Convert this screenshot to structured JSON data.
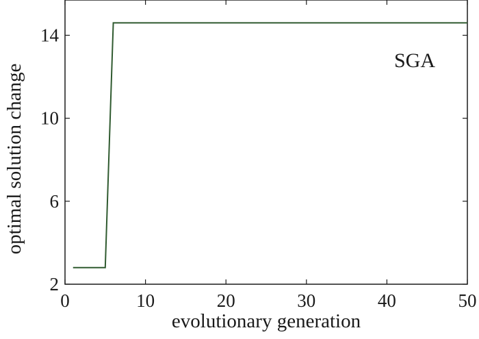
{
  "chart_data": {
    "type": "line",
    "title": "",
    "xlabel": "evolutionary generation",
    "ylabel": "optimal solution change",
    "xlim": [
      0,
      50
    ],
    "ylim": [
      2,
      15.7
    ],
    "xticks": [
      0,
      10,
      20,
      30,
      40,
      50
    ],
    "yticks": [
      2,
      6,
      10,
      14
    ],
    "grid": false,
    "annotation": "SGA",
    "series": [
      {
        "color": "#2f5a2f",
        "x": [
          1,
          5,
          6,
          50
        ],
        "y": [
          2.8,
          2.8,
          14.6,
          14.6
        ]
      }
    ]
  }
}
